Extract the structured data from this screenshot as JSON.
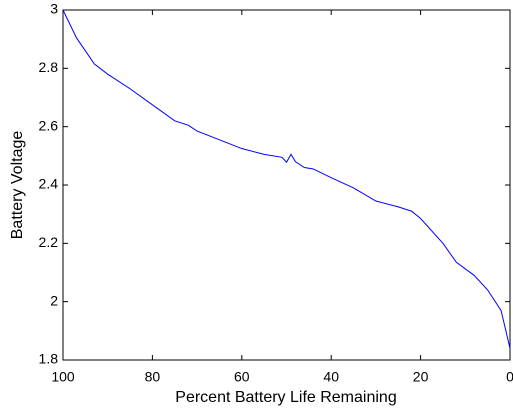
{
  "chart_data": {
    "type": "line",
    "xlabel": "Percent Battery Life Remaining",
    "ylabel": "Battery Voltage",
    "x": [
      100,
      97,
      93,
      90,
      85,
      80,
      75,
      72,
      70,
      65,
      60,
      55,
      51,
      50,
      49,
      48,
      46,
      44,
      40,
      35,
      30,
      25,
      22,
      20,
      15,
      12,
      8,
      5,
      2,
      0
    ],
    "values": [
      3.0,
      2.905,
      2.815,
      2.78,
      2.73,
      2.675,
      2.62,
      2.605,
      2.585,
      2.555,
      2.525,
      2.505,
      2.495,
      2.478,
      2.505,
      2.48,
      2.46,
      2.455,
      2.425,
      2.39,
      2.345,
      2.325,
      2.31,
      2.285,
      2.2,
      2.135,
      2.09,
      2.04,
      1.97,
      1.84
    ],
    "color": "#0000ff",
    "xlim": [
      100,
      0
    ],
    "xticks": [
      100,
      80,
      60,
      40,
      20,
      0
    ],
    "ylim": [
      1.8,
      3
    ],
    "yticks": [
      1.8,
      2,
      2.2,
      2.4,
      2.6,
      2.8,
      3
    ]
  }
}
